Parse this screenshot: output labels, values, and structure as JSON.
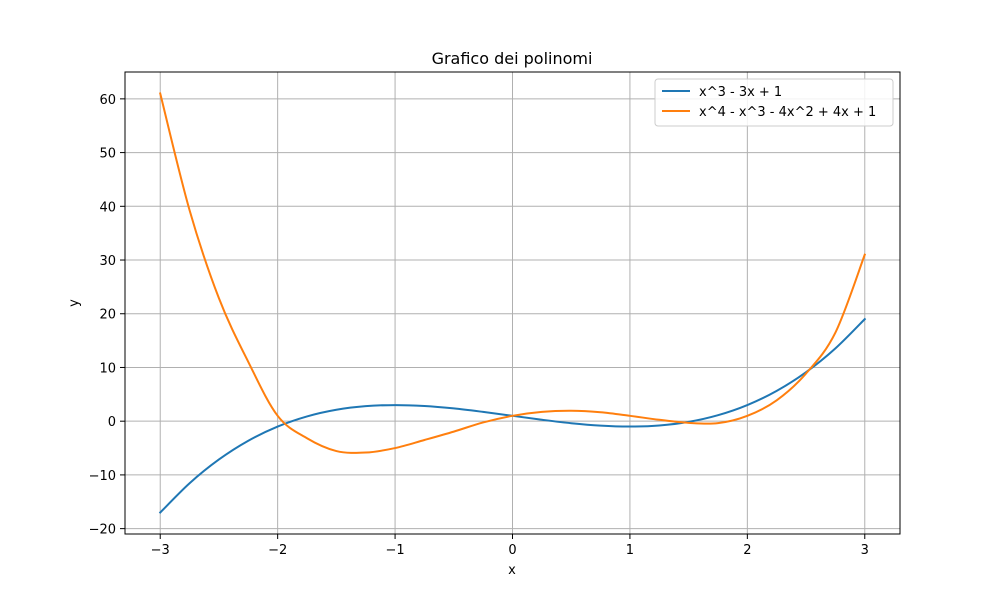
{
  "chart_data": {
    "type": "line",
    "title": "Grafico dei polinomi",
    "xlabel": "x",
    "ylabel": "y",
    "xlim": [
      -3.3,
      3.3
    ],
    "ylim": [
      -21,
      65
    ],
    "xticks": [
      -3,
      -2,
      -1,
      0,
      1,
      2,
      3
    ],
    "yticks": [
      -20,
      -10,
      0,
      10,
      20,
      30,
      40,
      50,
      60
    ],
    "xtick_labels": [
      "−3",
      "−2",
      "−1",
      "0",
      "1",
      "2",
      "3"
    ],
    "ytick_labels": [
      "−20",
      "−10",
      "0",
      "10",
      "20",
      "30",
      "40",
      "50",
      "60"
    ],
    "grid": true,
    "legend_position": "top-right",
    "series": [
      {
        "name": "x^3 - 3x + 1",
        "color": "#1f77b4",
        "x": [
          -3,
          -2.75,
          -2.5,
          -2.25,
          -2,
          -1.75,
          -1.5,
          -1.25,
          -1,
          -0.75,
          -0.5,
          -0.25,
          0,
          0.25,
          0.5,
          0.75,
          1,
          1.25,
          1.5,
          1.75,
          2,
          2.25,
          2.5,
          2.75,
          3
        ],
        "y": [
          -17,
          -11.55,
          -7.13,
          -3.64,
          -1,
          0.89,
          2.13,
          2.8,
          3,
          2.83,
          2.38,
          1.73,
          1,
          0.27,
          -0.38,
          -0.83,
          -1,
          -0.8,
          -0.13,
          1.11,
          3,
          5.64,
          9.13,
          13.55,
          19
        ]
      },
      {
        "name": "x^4 - x^3 - 4x^2 + 4x + 1",
        "color": "#ff7f0e",
        "x": [
          -3,
          -2.75,
          -2.5,
          -2.25,
          -2,
          -1.75,
          -1.5,
          -1.25,
          -1,
          -0.75,
          -0.5,
          -0.25,
          0,
          0.25,
          0.5,
          0.75,
          1,
          1.25,
          1.5,
          1.75,
          2,
          2.25,
          2.5,
          2.75,
          3
        ],
        "y": [
          61,
          39.27,
          22.88,
          11.03,
          1,
          -3.18,
          -5.56,
          -5.84,
          -5,
          -3.5,
          -1.94,
          -0.23,
          1,
          1.73,
          1.94,
          1.66,
          1,
          0.26,
          -0.31,
          -0.36,
          1,
          3.89,
          8.88,
          16.5,
          31
        ]
      }
    ]
  }
}
